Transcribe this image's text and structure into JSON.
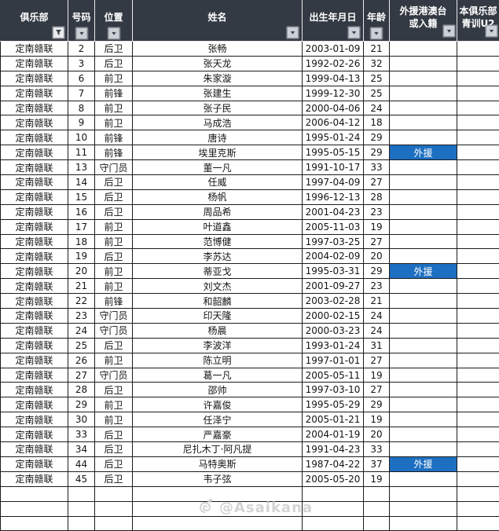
{
  "watermark": {
    "handle": "@Asaikana"
  },
  "colors": {
    "header_bg": "#343a44",
    "header_text": "#ffffff",
    "grid_line": "#1c1c1c",
    "foreign_cell_bg": "#1d6fc1",
    "foreign_cell_text": "#ffffff"
  },
  "table": {
    "columns": [
      {
        "key": "club",
        "label": "俱乐部",
        "icon": "filter",
        "icon_pos": "right"
      },
      {
        "key": "number",
        "label": "号码",
        "icon": "dropdown",
        "icon_pos": "center"
      },
      {
        "key": "position",
        "label": "位置",
        "icon": "dropdown",
        "icon_pos": "center"
      },
      {
        "key": "name",
        "label": "姓名",
        "icon": "dropdown",
        "icon_pos": "right"
      },
      {
        "key": "dob",
        "label": "出生年月日",
        "icon": "dropdown",
        "icon_pos": "right"
      },
      {
        "key": "age",
        "label": "年龄",
        "icon": "dropdown",
        "icon_pos": "center"
      },
      {
        "key": "foreign",
        "label": "外援港澳台\n或入籍",
        "icon": "dropdown",
        "icon_pos": "inline"
      },
      {
        "key": "youth",
        "label": "本俱乐部\n青训U2",
        "icon": "dropdown",
        "icon_pos": "inline"
      }
    ],
    "rows": [
      {
        "club": "定南赣联",
        "number": 2,
        "position": "后卫",
        "name": "张畅",
        "dob": "2003-01-09",
        "age": 21,
        "foreign": "",
        "youth": ""
      },
      {
        "club": "定南赣联",
        "number": 3,
        "position": "后卫",
        "name": "张天龙",
        "dob": "1992-02-26",
        "age": 32,
        "foreign": "",
        "youth": ""
      },
      {
        "club": "定南赣联",
        "number": 6,
        "position": "前卫",
        "name": "朱家漩",
        "dob": "1999-04-13",
        "age": 25,
        "foreign": "",
        "youth": ""
      },
      {
        "club": "定南赣联",
        "number": 7,
        "position": "前锋",
        "name": "张建生",
        "dob": "1999-12-30",
        "age": 25,
        "foreign": "",
        "youth": ""
      },
      {
        "club": "定南赣联",
        "number": 8,
        "position": "前卫",
        "name": "张子民",
        "dob": "2000-04-06",
        "age": 24,
        "foreign": "",
        "youth": ""
      },
      {
        "club": "定南赣联",
        "number": 9,
        "position": "前卫",
        "name": "马成浩",
        "dob": "2006-04-12",
        "age": 18,
        "foreign": "",
        "youth": ""
      },
      {
        "club": "定南赣联",
        "number": 10,
        "position": "前锋",
        "name": "唐诗",
        "dob": "1995-01-24",
        "age": 29,
        "foreign": "",
        "youth": ""
      },
      {
        "club": "定南赣联",
        "number": 11,
        "position": "前锋",
        "name": "埃里克斯",
        "dob": "1995-05-15",
        "age": 29,
        "foreign": "外援",
        "youth": ""
      },
      {
        "club": "定南赣联",
        "number": 13,
        "position": "守门员",
        "name": "董一凡",
        "dob": "1991-10-17",
        "age": 33,
        "foreign": "",
        "youth": ""
      },
      {
        "club": "定南赣联",
        "number": 14,
        "position": "后卫",
        "name": "任威",
        "dob": "1997-04-09",
        "age": 27,
        "foreign": "",
        "youth": ""
      },
      {
        "club": "定南赣联",
        "number": 15,
        "position": "后卫",
        "name": "杨帆",
        "dob": "1996-12-13",
        "age": 28,
        "foreign": "",
        "youth": ""
      },
      {
        "club": "定南赣联",
        "number": 16,
        "position": "后卫",
        "name": "周品希",
        "dob": "2001-04-23",
        "age": 23,
        "foreign": "",
        "youth": ""
      },
      {
        "club": "定南赣联",
        "number": 17,
        "position": "前卫",
        "name": "叶道鑫",
        "dob": "2005-11-03",
        "age": 19,
        "foreign": "",
        "youth": ""
      },
      {
        "club": "定南赣联",
        "number": 18,
        "position": "前卫",
        "name": "范博健",
        "dob": "1997-03-25",
        "age": 27,
        "foreign": "",
        "youth": ""
      },
      {
        "club": "定南赣联",
        "number": 19,
        "position": "后卫",
        "name": "李苏达",
        "dob": "2004-02-09",
        "age": 20,
        "foreign": "",
        "youth": ""
      },
      {
        "club": "定南赣联",
        "number": 20,
        "position": "前卫",
        "name": "蒂亚戈",
        "dob": "1995-03-31",
        "age": 29,
        "foreign": "外援",
        "youth": ""
      },
      {
        "club": "定南赣联",
        "number": 21,
        "position": "前卫",
        "name": "刘文杰",
        "dob": "2001-09-27",
        "age": 23,
        "foreign": "",
        "youth": ""
      },
      {
        "club": "定南赣联",
        "number": 22,
        "position": "前锋",
        "name": "和韶麟",
        "dob": "2003-02-28",
        "age": 21,
        "foreign": "",
        "youth": ""
      },
      {
        "club": "定南赣联",
        "number": 23,
        "position": "守门员",
        "name": "印天隆",
        "dob": "2000-02-15",
        "age": 24,
        "foreign": "",
        "youth": ""
      },
      {
        "club": "定南赣联",
        "number": 24,
        "position": "守门员",
        "name": "杨晨",
        "dob": "2000-03-23",
        "age": 24,
        "foreign": "",
        "youth": ""
      },
      {
        "club": "定南赣联",
        "number": 25,
        "position": "后卫",
        "name": "李波洋",
        "dob": "1993-01-24",
        "age": 31,
        "foreign": "",
        "youth": ""
      },
      {
        "club": "定南赣联",
        "number": 26,
        "position": "前卫",
        "name": "陈立明",
        "dob": "1997-01-01",
        "age": 27,
        "foreign": "",
        "youth": ""
      },
      {
        "club": "定南赣联",
        "number": 27,
        "position": "守门员",
        "name": "葛一凡",
        "dob": "2005-05-11",
        "age": 19,
        "foreign": "",
        "youth": ""
      },
      {
        "club": "定南赣联",
        "number": 28,
        "position": "后卫",
        "name": "邵帅",
        "dob": "1997-03-10",
        "age": 27,
        "foreign": "",
        "youth": ""
      },
      {
        "club": "定南赣联",
        "number": 29,
        "position": "前卫",
        "name": "许嘉俊",
        "dob": "1995-05-29",
        "age": 29,
        "foreign": "",
        "youth": ""
      },
      {
        "club": "定南赣联",
        "number": 30,
        "position": "前卫",
        "name": "任泽宁",
        "dob": "2005-01-21",
        "age": 19,
        "foreign": "",
        "youth": ""
      },
      {
        "club": "定南赣联",
        "number": 33,
        "position": "后卫",
        "name": "严嘉豪",
        "dob": "2004-01-19",
        "age": 20,
        "foreign": "",
        "youth": ""
      },
      {
        "club": "定南赣联",
        "number": 34,
        "position": "后卫",
        "name": "尼扎木丁·阿凡提",
        "dob": "1991-04-23",
        "age": 33,
        "foreign": "",
        "youth": ""
      },
      {
        "club": "定南赣联",
        "number": 44,
        "position": "后卫",
        "name": "马特奥斯",
        "dob": "1987-04-22",
        "age": 37,
        "foreign": "外援",
        "youth": ""
      },
      {
        "club": "定南赣联",
        "number": 45,
        "position": "后卫",
        "name": "韦子弦",
        "dob": "2005-05-20",
        "age": 19,
        "foreign": "",
        "youth": ""
      }
    ],
    "empty_row_count": 3
  }
}
